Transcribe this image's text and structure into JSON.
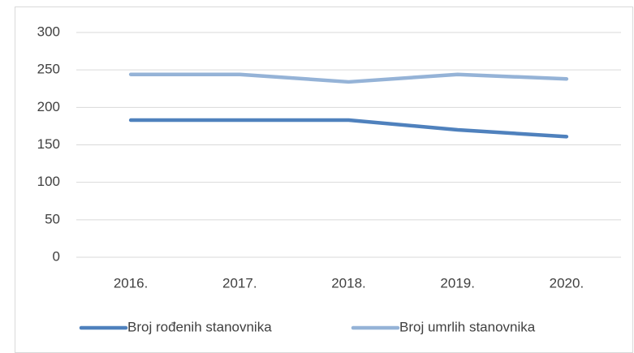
{
  "chart_data": {
    "type": "line",
    "categories": [
      "2016.",
      "2017.",
      "2018.",
      "2019.",
      "2020."
    ],
    "series": [
      {
        "name": "Broj rođenih stanovnika",
        "color": "#4f81bd",
        "values": [
          183,
          183,
          183,
          170,
          161
        ]
      },
      {
        "name": "Broj umrlih stanovnika",
        "color": "#95b3d7",
        "values": [
          244,
          244,
          234,
          244,
          238
        ]
      }
    ],
    "ylim": [
      0,
      300
    ],
    "yticks": [
      0,
      50,
      100,
      150,
      200,
      250,
      300
    ],
    "grid": true,
    "legend": "bottom"
  }
}
